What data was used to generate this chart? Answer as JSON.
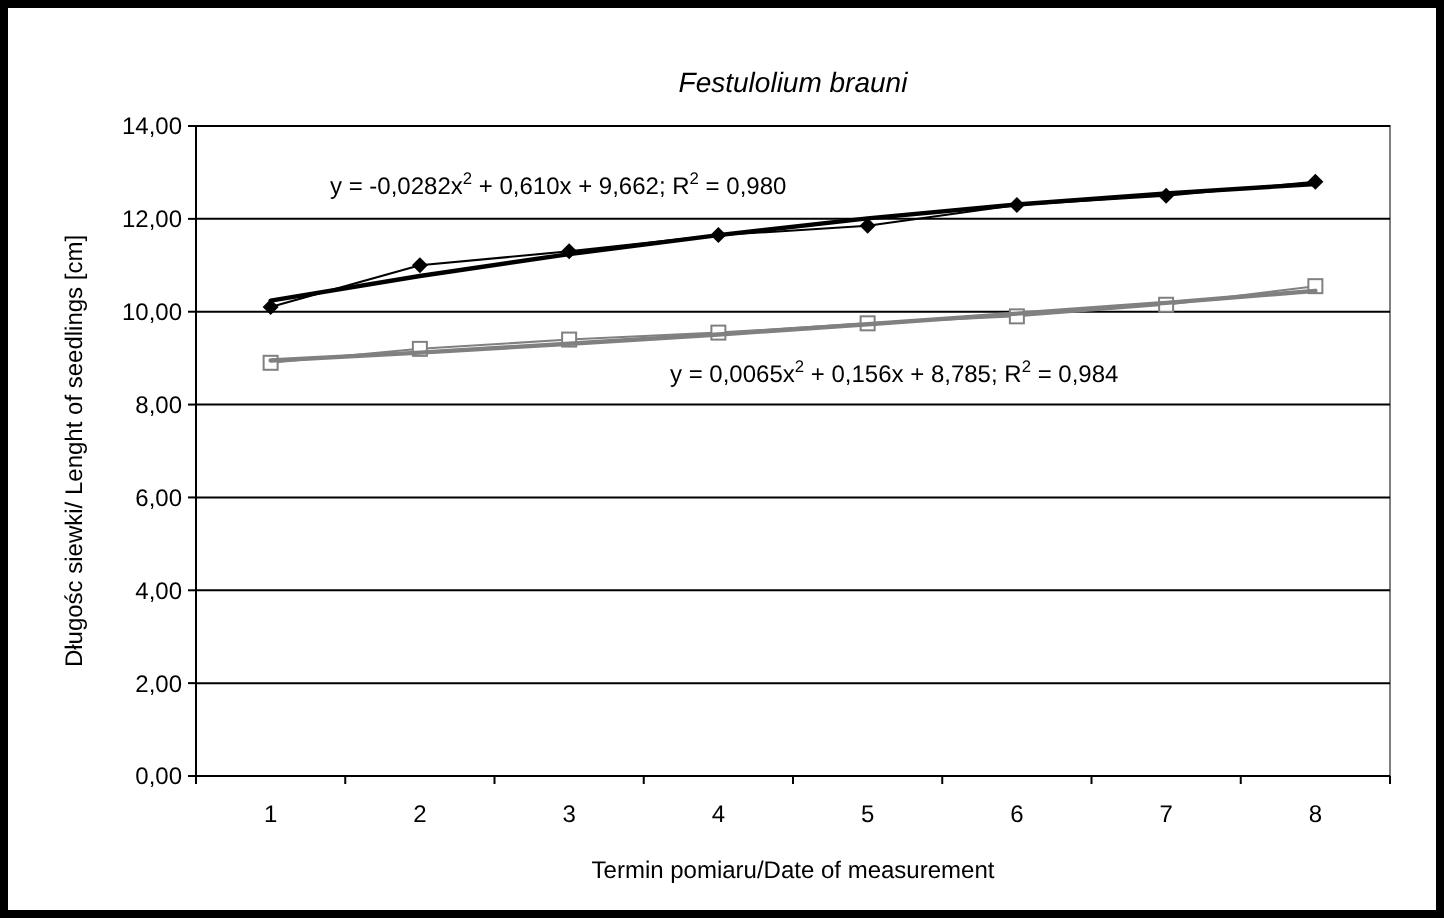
{
  "chart_data": {
    "type": "line",
    "title": "Festulolium brauni",
    "xlabel": "Termin pomiaru/Date of measurement",
    "ylabel": "Długośc siewki/ Lenght of seedlings [cm]",
    "categories": [
      "1",
      "2",
      "3",
      "4",
      "5",
      "6",
      "7",
      "8"
    ],
    "series": [
      {
        "color": "#000000",
        "marker": "diamond",
        "values": [
          10.1,
          11.0,
          11.3,
          11.65,
          11.85,
          12.3,
          12.5,
          12.8
        ]
      },
      {
        "color": "#808080",
        "marker": "square",
        "values": [
          8.9,
          9.2,
          9.4,
          9.55,
          9.75,
          9.9,
          10.15,
          10.55
        ]
      },
      {
        "type": "line",
        "color": "#000000",
        "marker": "none",
        "x": [
          "1",
          "2",
          "3",
          "4",
          "5",
          "6",
          "7",
          "8"
        ],
        "values": [
          10.24,
          10.77,
          11.24,
          11.65,
          12.01,
          12.31,
          12.55,
          12.75
        ]
      },
      {
        "type": "line",
        "color": "#808080",
        "marker": "none",
        "x": [
          "1",
          "2",
          "3",
          "4",
          "5",
          "6",
          "7",
          "8"
        ],
        "values": [
          8.95,
          9.12,
          9.31,
          9.51,
          9.73,
          9.96,
          10.19,
          10.45
        ]
      }
    ],
    "ylim": [
      0,
      14
    ],
    "yticks": [
      {
        "value": 0,
        "label": "0,00"
      },
      {
        "value": 2,
        "label": "2,00"
      },
      {
        "value": 4,
        "label": "4,00"
      },
      {
        "value": 6,
        "label": "6,00"
      },
      {
        "value": 8,
        "label": "8,00"
      },
      {
        "value": 10,
        "label": "10,00"
      },
      {
        "value": 12,
        "label": "12,00"
      },
      {
        "value": 14,
        "label": "14,00"
      }
    ],
    "grid": "y",
    "line_style": "solid",
    "annotations": [
      "y = -0,0282x$^{2}$ + 0,610x + 9,662; R$^{2}$ = 0,980",
      "y = 0,0065x$^{2}$ + 0,156x + 8,785; R$^{2}$ = 0,984"
    ]
  }
}
